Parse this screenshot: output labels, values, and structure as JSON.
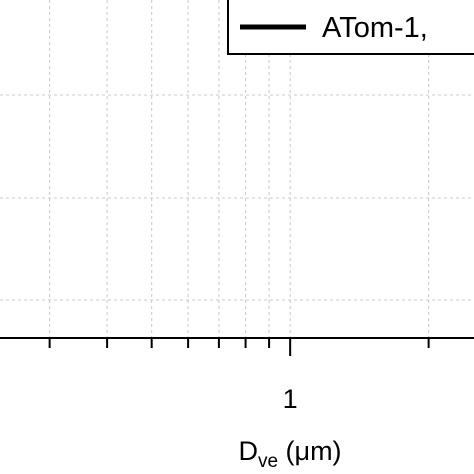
{
  "chart_data": {
    "type": "line",
    "log_x": true,
    "grid": true,
    "xlim": [
      0.234,
      2.51
    ],
    "xticks": [
      1
    ],
    "xminor_ticks": [
      0.3,
      0.4,
      0.5,
      0.6,
      0.7,
      0.8,
      0.9,
      2
    ],
    "x_label": {
      "main": "D",
      "sub": "ve",
      "rest": " (μm)"
    },
    "series": [
      {
        "name": "ATom-1,",
        "color": "#000000"
      }
    ],
    "legend": "upper right"
  }
}
